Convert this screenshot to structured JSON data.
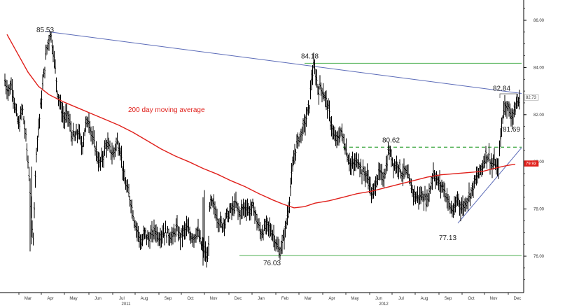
{
  "chart_data": {
    "type": "line",
    "subtype": "ohlc-bars",
    "title": "",
    "xlabel": "",
    "ylabel": "",
    "ylim": [
      74.5,
      87.0
    ],
    "y_ticks": [
      "86.00",
      "84.00",
      "82.00",
      "80.00",
      "78.00",
      "76.00"
    ],
    "x_ticks": [
      "Mar",
      "Apr",
      "May",
      "Jun",
      "Jul",
      "Aug",
      "Sep",
      "Oct",
      "Nov",
      "Dec",
      "Jan",
      "Feb",
      "Mar",
      "Apr",
      "May",
      "Jun",
      "Jul",
      "Aug",
      "Sep",
      "Oct",
      "Nov",
      "Dec"
    ],
    "x_years": [
      "2011",
      "2012"
    ],
    "grid": false,
    "price_series": {
      "name": "",
      "color": "#000000",
      "points": [
        [
          0,
          83.4
        ],
        [
          5,
          83.0
        ],
        [
          10,
          83.3
        ],
        [
          15,
          82.2
        ],
        [
          20,
          81.5
        ],
        [
          25,
          82.3
        ],
        [
          30,
          81.0
        ],
        [
          35,
          79.3
        ],
        [
          40,
          76.5
        ],
        [
          45,
          80.5
        ],
        [
          50,
          82.0
        ],
        [
          55,
          83.5
        ],
        [
          60,
          84.8
        ],
        [
          65,
          85.5
        ],
        [
          70,
          84.5
        ],
        [
          75,
          83.0
        ],
        [
          80,
          82.3
        ],
        [
          85,
          81.8
        ],
        [
          90,
          82.0
        ],
        [
          95,
          81.2
        ],
        [
          100,
          81.0
        ],
        [
          105,
          81.3
        ],
        [
          110,
          80.6
        ],
        [
          115,
          81.5
        ],
        [
          120,
          81.8
        ],
        [
          125,
          81.0
        ],
        [
          130,
          80.5
        ],
        [
          135,
          79.9
        ],
        [
          140,
          80.2
        ],
        [
          145,
          80.8
        ],
        [
          150,
          80.5
        ],
        [
          155,
          80.3
        ],
        [
          160,
          80.9
        ],
        [
          165,
          80.5
        ],
        [
          170,
          79.3
        ],
        [
          175,
          78.8
        ],
        [
          180,
          78.3
        ],
        [
          185,
          77.5
        ],
        [
          190,
          77.0
        ],
        [
          195,
          76.5
        ],
        [
          200,
          77.0
        ],
        [
          205,
          76.7
        ],
        [
          210,
          76.9
        ],
        [
          215,
          77.1
        ],
        [
          220,
          76.8
        ],
        [
          225,
          77.0
        ],
        [
          230,
          77.0
        ],
        [
          235,
          76.9
        ],
        [
          240,
          76.8
        ],
        [
          245,
          77.2
        ],
        [
          250,
          76.8
        ],
        [
          255,
          77.0
        ],
        [
          260,
          77.2
        ],
        [
          265,
          76.9
        ],
        [
          270,
          76.8
        ],
        [
          275,
          77.1
        ],
        [
          280,
          76.5
        ],
        [
          285,
          76.2
        ],
        [
          290,
          75.8
        ],
        [
          293,
          78.3
        ],
        [
          296,
          78.2
        ],
        [
          300,
          78.0
        ],
        [
          305,
          77.5
        ],
        [
          310,
          77.3
        ],
        [
          315,
          77.6
        ],
        [
          320,
          77.8
        ],
        [
          325,
          78.0
        ],
        [
          330,
          78.2
        ],
        [
          335,
          77.8
        ],
        [
          340,
          78.0
        ],
        [
          345,
          78.1
        ],
        [
          350,
          77.9
        ],
        [
          355,
          78.1
        ],
        [
          360,
          77.5
        ],
        [
          365,
          77.0
        ],
        [
          370,
          77.1
        ],
        [
          375,
          77.3
        ],
        [
          380,
          77.1
        ],
        [
          385,
          76.8
        ],
        [
          390,
          76.3
        ],
        [
          393,
          76.2
        ],
        [
          396,
          76.5
        ],
        [
          400,
          77.0
        ],
        [
          405,
          78.0
        ],
        [
          410,
          79.5
        ],
        [
          415,
          80.5
        ],
        [
          420,
          81.0
        ],
        [
          425,
          81.3
        ],
        [
          430,
          81.8
        ],
        [
          435,
          82.4
        ],
        [
          438,
          83.5
        ],
        [
          441,
          84.0
        ],
        [
          444,
          83.7
        ],
        [
          448,
          83.0
        ],
        [
          452,
          83.2
        ],
        [
          456,
          82.8
        ],
        [
          460,
          82.5
        ],
        [
          465,
          81.8
        ],
        [
          470,
          81.0
        ],
        [
          475,
          80.9
        ],
        [
          480,
          81.3
        ],
        [
          485,
          80.8
        ],
        [
          490,
          80.2
        ],
        [
          495,
          79.8
        ],
        [
          500,
          79.9
        ],
        [
          505,
          80.1
        ],
        [
          510,
          79.6
        ],
        [
          515,
          79.5
        ],
        [
          520,
          79.2
        ],
        [
          525,
          78.5
        ],
        [
          530,
          79.2
        ],
        [
          535,
          79.5
        ],
        [
          540,
          79.3
        ],
        [
          545,
          79.8
        ],
        [
          548,
          80.5
        ],
        [
          552,
          80.2
        ],
        [
          557,
          79.8
        ],
        [
          562,
          79.9
        ],
        [
          567,
          79.5
        ],
        [
          572,
          79.6
        ],
        [
          577,
          79.2
        ],
        [
          582,
          78.8
        ],
        [
          587,
          78.5
        ],
        [
          592,
          78.5
        ],
        [
          597,
          78.6
        ],
        [
          602,
          78.3
        ],
        [
          607,
          78.8
        ],
        [
          612,
          79.6
        ],
        [
          617,
          79.2
        ],
        [
          622,
          79.0
        ],
        [
          627,
          78.9
        ],
        [
          632,
          78.4
        ],
        [
          637,
          78.0
        ],
        [
          642,
          77.9
        ],
        [
          647,
          78.5
        ],
        [
          652,
          78.0
        ],
        [
          657,
          78.2
        ],
        [
          662,
          78.5
        ],
        [
          667,
          78.8
        ],
        [
          672,
          79.2
        ],
        [
          677,
          79.5
        ],
        [
          682,
          79.8
        ],
        [
          687,
          80.3
        ],
        [
          692,
          80.2
        ],
        [
          696,
          79.8
        ],
        [
          700,
          80.0
        ],
        [
          704,
          79.5
        ],
        [
          708,
          81.0
        ],
        [
          712,
          82.2
        ],
        [
          716,
          82.5
        ],
        [
          720,
          82.2
        ],
        [
          724,
          81.9
        ],
        [
          728,
          82.2
        ],
        [
          732,
          82.5
        ],
        [
          736,
          82.6
        ]
      ]
    },
    "moving_average": {
      "name": "200 day moving average",
      "color": "#e0201b",
      "points": [
        [
          10,
          85.4
        ],
        [
          25,
          84.6
        ],
        [
          40,
          83.8
        ],
        [
          55,
          83.2
        ],
        [
          70,
          82.85
        ],
        [
          90,
          82.55
        ],
        [
          110,
          82.3
        ],
        [
          130,
          82.05
        ],
        [
          150,
          81.8
        ],
        [
          170,
          81.55
        ],
        [
          190,
          81.25
        ],
        [
          210,
          80.9
        ],
        [
          230,
          80.55
        ],
        [
          250,
          80.25
        ],
        [
          270,
          80.0
        ],
        [
          290,
          79.72
        ],
        [
          310,
          79.48
        ],
        [
          330,
          79.2
        ],
        [
          350,
          78.95
        ],
        [
          370,
          78.65
        ],
        [
          390,
          78.38
        ],
        [
          405,
          78.2
        ],
        [
          420,
          78.05
        ],
        [
          435,
          78.1
        ],
        [
          450,
          78.25
        ],
        [
          470,
          78.35
        ],
        [
          490,
          78.5
        ],
        [
          510,
          78.65
        ],
        [
          530,
          78.75
        ],
        [
          550,
          78.9
        ],
        [
          570,
          79.05
        ],
        [
          590,
          79.2
        ],
        [
          610,
          79.35
        ],
        [
          630,
          79.45
        ],
        [
          650,
          79.5
        ],
        [
          670,
          79.55
        ],
        [
          690,
          79.6
        ],
        [
          710,
          79.75
        ],
        [
          725,
          79.85
        ],
        [
          736,
          79.9
        ]
      ]
    },
    "annotations": [
      {
        "text": "85.53",
        "value": 85.53
      },
      {
        "text": "84.18",
        "value": 84.18
      },
      {
        "text": "80.62",
        "value": 80.62
      },
      {
        "text": "82.84",
        "value": 82.84
      },
      {
        "text": "81.69",
        "value": 81.69
      },
      {
        "text": "77.13",
        "value": 77.13
      },
      {
        "text": "76.03",
        "value": 76.03
      }
    ],
    "ma_label": "200 day moving average",
    "horizontal_levels": [
      {
        "value": 84.18,
        "style": "solid",
        "color": "#4caf50"
      },
      {
        "value": 80.62,
        "style": "dashed",
        "color": "#4caf50"
      },
      {
        "value": 76.03,
        "style": "solid",
        "color": "#4caf50"
      }
    ],
    "trendlines": [
      {
        "name": "downtrend",
        "from": [
          65,
          85.53
        ],
        "to": [
          745,
          82.9
        ],
        "color": "#5b6bb8"
      },
      {
        "name": "uptrend",
        "from": [
          654,
          77.4
        ],
        "to": [
          745,
          80.6
        ],
        "color": "#5b6bb8"
      }
    ],
    "last_value_labels": [
      {
        "text": "82.73",
        "value": 82.73,
        "color": "#ffffff",
        "text_color": "#333333"
      },
      {
        "text": "79.93",
        "value": 79.93,
        "color": "#e0201b",
        "text_color": "#ffffff"
      }
    ]
  }
}
